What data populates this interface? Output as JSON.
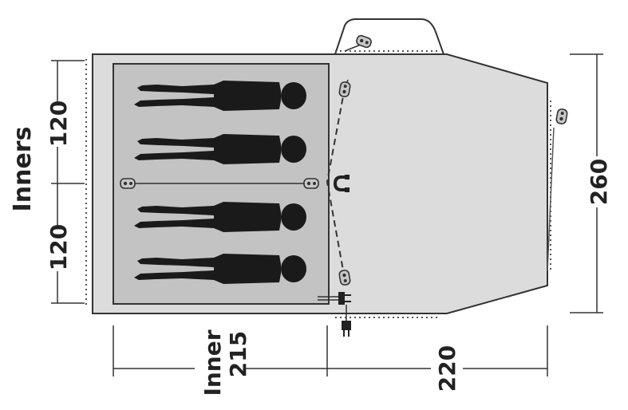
{
  "labels": {
    "inners": "Inners",
    "inner_top": "120",
    "inner_bottom": "120",
    "inner_word": "Inner",
    "inner_length": "215",
    "vestibule_length": "220",
    "width": "260"
  },
  "colors": {
    "tent_fill": "#dcdcdc",
    "inner_fill": "#c3c3c3",
    "outline": "#333333",
    "figure": "#1a1a1a"
  },
  "icons": [
    "person-icon",
    "guy-line-peg-icon",
    "magnet-icon",
    "power-plug-icon"
  ],
  "sleeping_figures": 4
}
